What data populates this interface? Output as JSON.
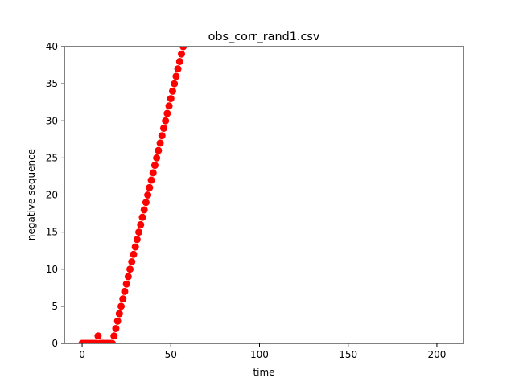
{
  "chart_data": {
    "type": "scatter",
    "title": "obs_corr_rand1.csv",
    "xlabel": "time",
    "ylabel": "negative sequence",
    "xlim": [
      -10,
      215
    ],
    "ylim": [
      0,
      40
    ],
    "xticks": [
      0,
      50,
      100,
      150,
      200
    ],
    "yticks": [
      0,
      5,
      10,
      15,
      20,
      25,
      30,
      35,
      40
    ],
    "grid": false,
    "legend": "none",
    "marker_color": "#ff0000",
    "series": [
      {
        "x": [
          0,
          1,
          2,
          3,
          4,
          5,
          6,
          7,
          8,
          9,
          10,
          11,
          12,
          13,
          14,
          15,
          16,
          17,
          18,
          19,
          20,
          21,
          22,
          23,
          24,
          25,
          26,
          27,
          28,
          29,
          30,
          31,
          32,
          33,
          34,
          35,
          36,
          37,
          38,
          39,
          40,
          41,
          42,
          43,
          44,
          45,
          46,
          47,
          48,
          49,
          50,
          51,
          52,
          53,
          54,
          55,
          56,
          57
        ],
        "y": [
          0,
          0,
          0,
          0,
          0,
          0,
          0,
          0,
          0,
          1,
          0,
          0,
          0,
          0,
          0,
          0,
          0,
          0,
          1,
          2,
          3,
          4,
          5,
          6,
          7,
          8,
          9,
          10,
          11,
          12,
          13,
          14,
          15,
          16,
          17,
          18,
          19,
          20,
          21,
          22,
          23,
          24,
          25,
          26,
          27,
          28,
          29,
          30,
          31,
          32,
          33,
          34,
          35,
          36,
          37,
          38,
          39,
          40
        ]
      }
    ]
  }
}
